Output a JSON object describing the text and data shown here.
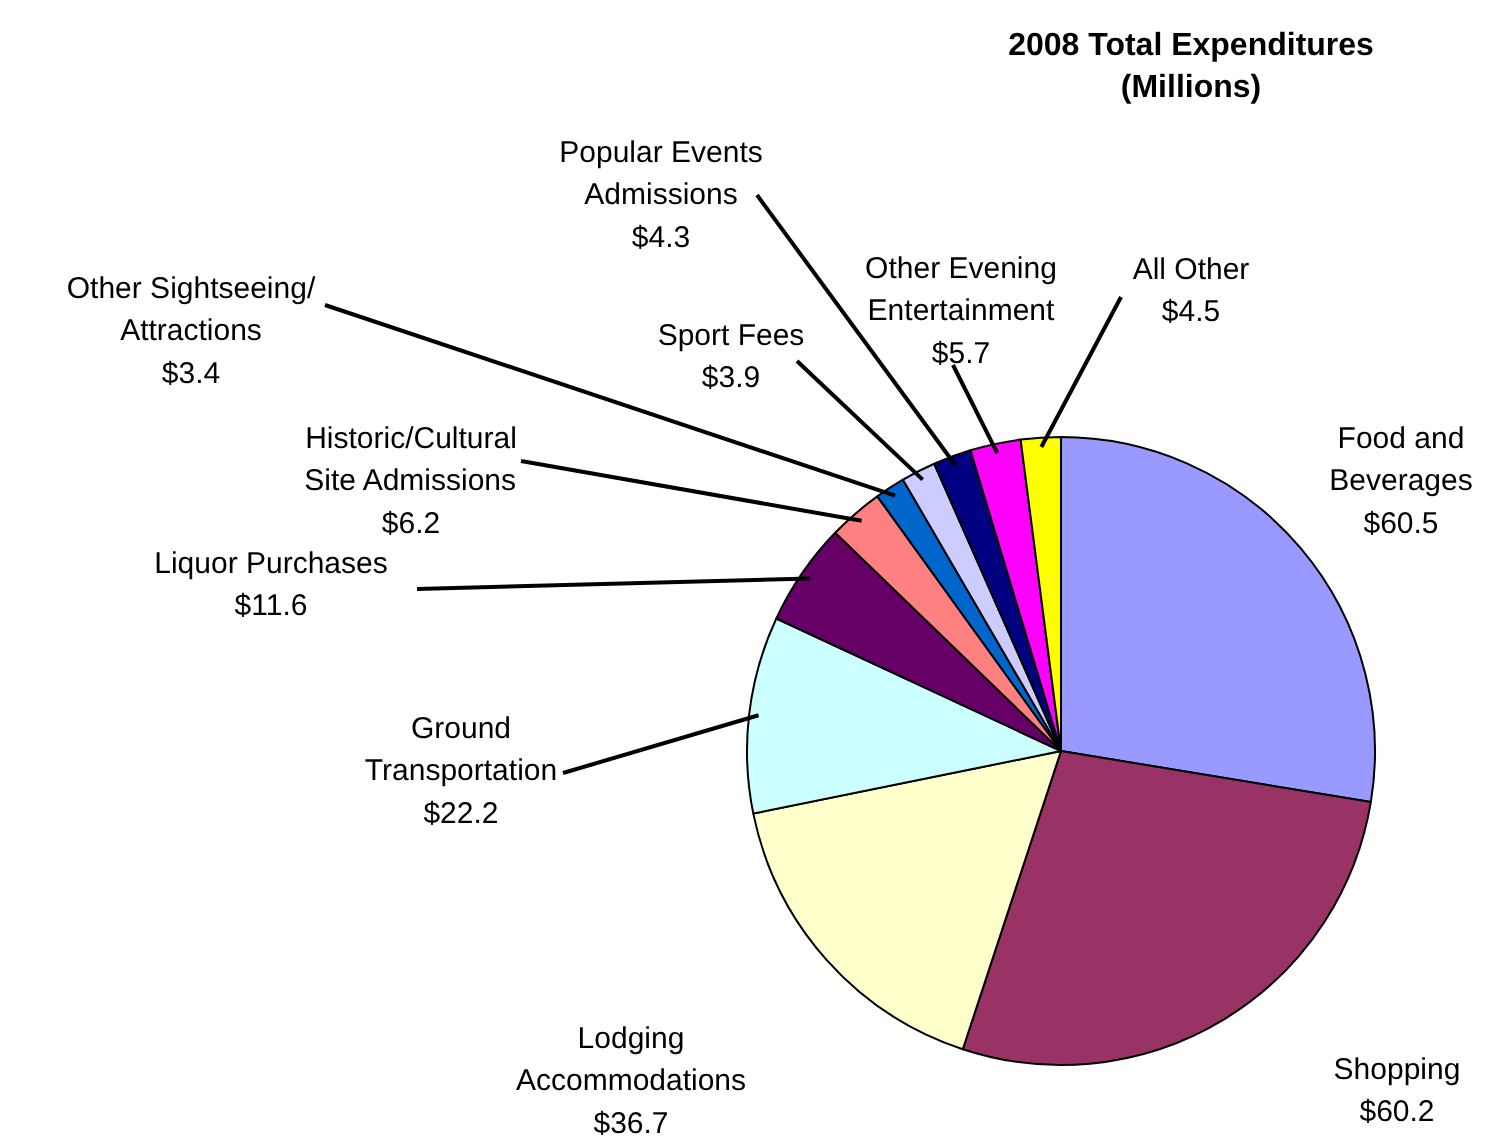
{
  "chart_data": {
    "type": "pie",
    "title": "2008 Total Expenditures\n(Millions)",
    "categories": [
      "Food and\nBeverages",
      "Shopping",
      "Lodging\nAccommodations",
      "Ground\nTransportation",
      "Liquor Purchases",
      "Historic/Cultural\nSite Admissions",
      "Other Sightseeing/\nAttractions",
      "Sport Fees",
      "Popular Events\nAdmissions",
      "Other Evening\nEntertainment",
      "All Other"
    ],
    "values": [
      60.5,
      60.2,
      36.7,
      22.2,
      11.6,
      6.2,
      3.4,
      3.9,
      4.3,
      5.7,
      4.5
    ],
    "value_labels": [
      "$60.5",
      "$60.2",
      "$36.7",
      "$22.2",
      "$11.6",
      "$6.2",
      "$3.4",
      "$3.9",
      "$4.3",
      "$5.7",
      "$4.5"
    ],
    "colors": [
      "#9999ff",
      "#993366",
      "#ffffcc",
      "#ccffff",
      "#660066",
      "#ff8080",
      "#0066cc",
      "#ccccff",
      "#000080",
      "#ff00ff",
      "#ffff00"
    ]
  }
}
